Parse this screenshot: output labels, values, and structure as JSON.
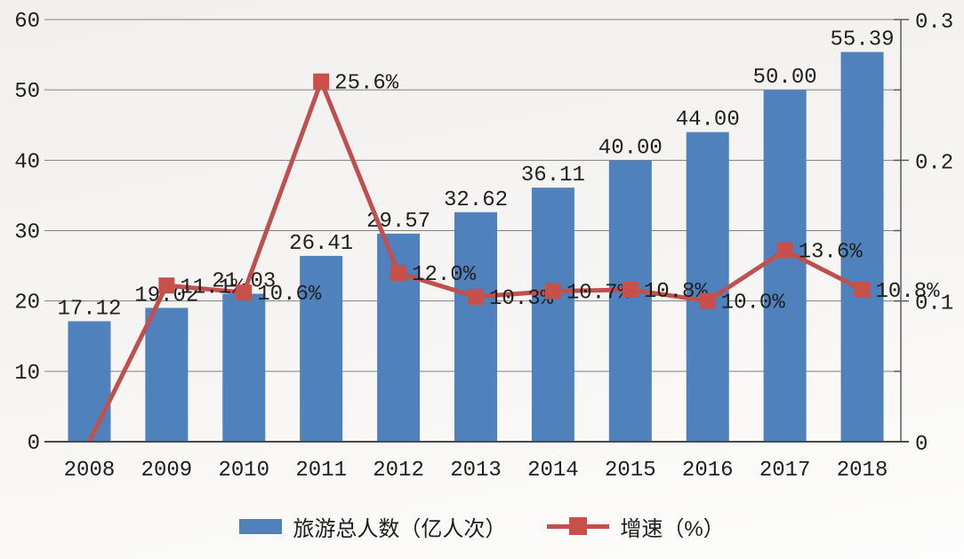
{
  "chart_data": {
    "type": "bar",
    "subtype": "bar-line-combo",
    "title": "",
    "categories": [
      "2008",
      "2009",
      "2010",
      "2011",
      "2012",
      "2013",
      "2014",
      "2015",
      "2016",
      "2017",
      "2018"
    ],
    "series": [
      {
        "name": "旅游总人数（亿人次）",
        "type": "bar",
        "axis": "left",
        "color": "#4f81bd",
        "values": [
          17.12,
          19.02,
          21.03,
          26.41,
          29.57,
          32.62,
          36.11,
          40.0,
          44.0,
          50.0,
          55.39
        ],
        "labels": [
          "17.12",
          "19.02",
          "21.03",
          "26.41",
          "29.57",
          "32.62",
          "36.11",
          "40.00",
          "44.00",
          "50.00",
          "55.39"
        ]
      },
      {
        "name": "增速（%）",
        "type": "line",
        "axis": "right",
        "color": "#c0504d",
        "marker": "square",
        "marker_color": "#c8504a",
        "values": [
          0,
          0.111,
          0.106,
          0.256,
          0.12,
          0.103,
          0.107,
          0.108,
          0.1,
          0.136,
          0.108
        ],
        "labels": [
          "",
          "11.1%",
          "10.6%",
          "25.6%",
          "12.0%",
          "10.3%",
          "10.7%",
          "10.8%",
          "10.0%",
          "13.6%",
          "10.8%"
        ]
      }
    ],
    "left_axis": {
      "min": 0,
      "max": 60,
      "step": 10,
      "tick_labels_bottom_up": [
        "0",
        "10",
        "20",
        "30",
        "40",
        "50",
        "60"
      ]
    },
    "right_axis": {
      "min": 0,
      "max": 0.3,
      "minor_step": 0.05,
      "tick_labels_top_down": [
        "0.3",
        "0.2",
        "0.1",
        "0"
      ]
    },
    "legend": {
      "position": "bottom",
      "entries": [
        "旅游总人数（亿人次）",
        "增速（%）"
      ]
    },
    "grid": "horizontal",
    "colors": {
      "gridline": "#7f7f7f",
      "baseline": "#4a4a4a",
      "right_axis_line": "#5a5a5a",
      "text": "#1f1f1f"
    }
  }
}
